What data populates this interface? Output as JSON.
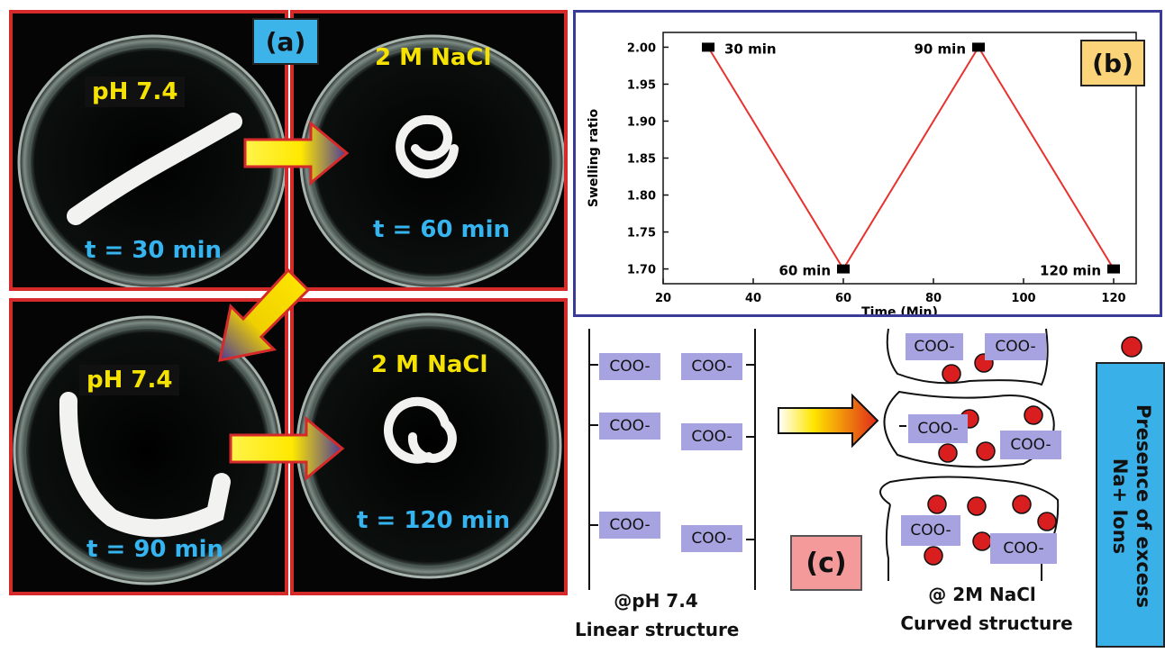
{
  "panel_a": {
    "tag": "(a)",
    "cells": [
      {
        "condition": "pH 7.4",
        "time": "t = 30 min"
      },
      {
        "condition": "2 M NaCl",
        "time": "t = 60 min"
      },
      {
        "condition": "pH 7.4",
        "time": "t = 90 min"
      },
      {
        "condition": "2 M NaCl",
        "time": "t = 120 min"
      }
    ]
  },
  "panel_b": {
    "tag": "(b)"
  },
  "chart_data": {
    "type": "line",
    "x": [
      30,
      60,
      90,
      120
    ],
    "y": [
      2.0,
      1.7,
      2.0,
      1.7
    ],
    "point_labels": [
      "30 min",
      "60 min",
      "90 min",
      "120 min"
    ],
    "xlabel": "Time (Min)",
    "ylabel": "Swelling ratio",
    "xlim": [
      20,
      125
    ],
    "ylim": [
      1.68,
      2.02
    ],
    "xticks": [
      "20",
      "40",
      "60",
      "80",
      "100",
      "120"
    ],
    "yticks": [
      "1.70",
      "1.75",
      "1.80",
      "1.85",
      "1.90",
      "1.95",
      "2.00"
    ],
    "line_color": "#e8322e",
    "marker_color": "#000000",
    "frame_color": "#3a3a99"
  },
  "panel_c": {
    "tag": "(c)",
    "group_label": "COO-",
    "left_caption_1": "@pH 7.4",
    "left_caption_2": "Linear structure",
    "right_caption_1": "@ 2M NaCl",
    "right_caption_2": "Curved structure",
    "legend_1": "Presence of excess",
    "legend_2": "Na+ Ions",
    "ion_color": "#d81e1e",
    "box_color": "#a7a3e0"
  }
}
